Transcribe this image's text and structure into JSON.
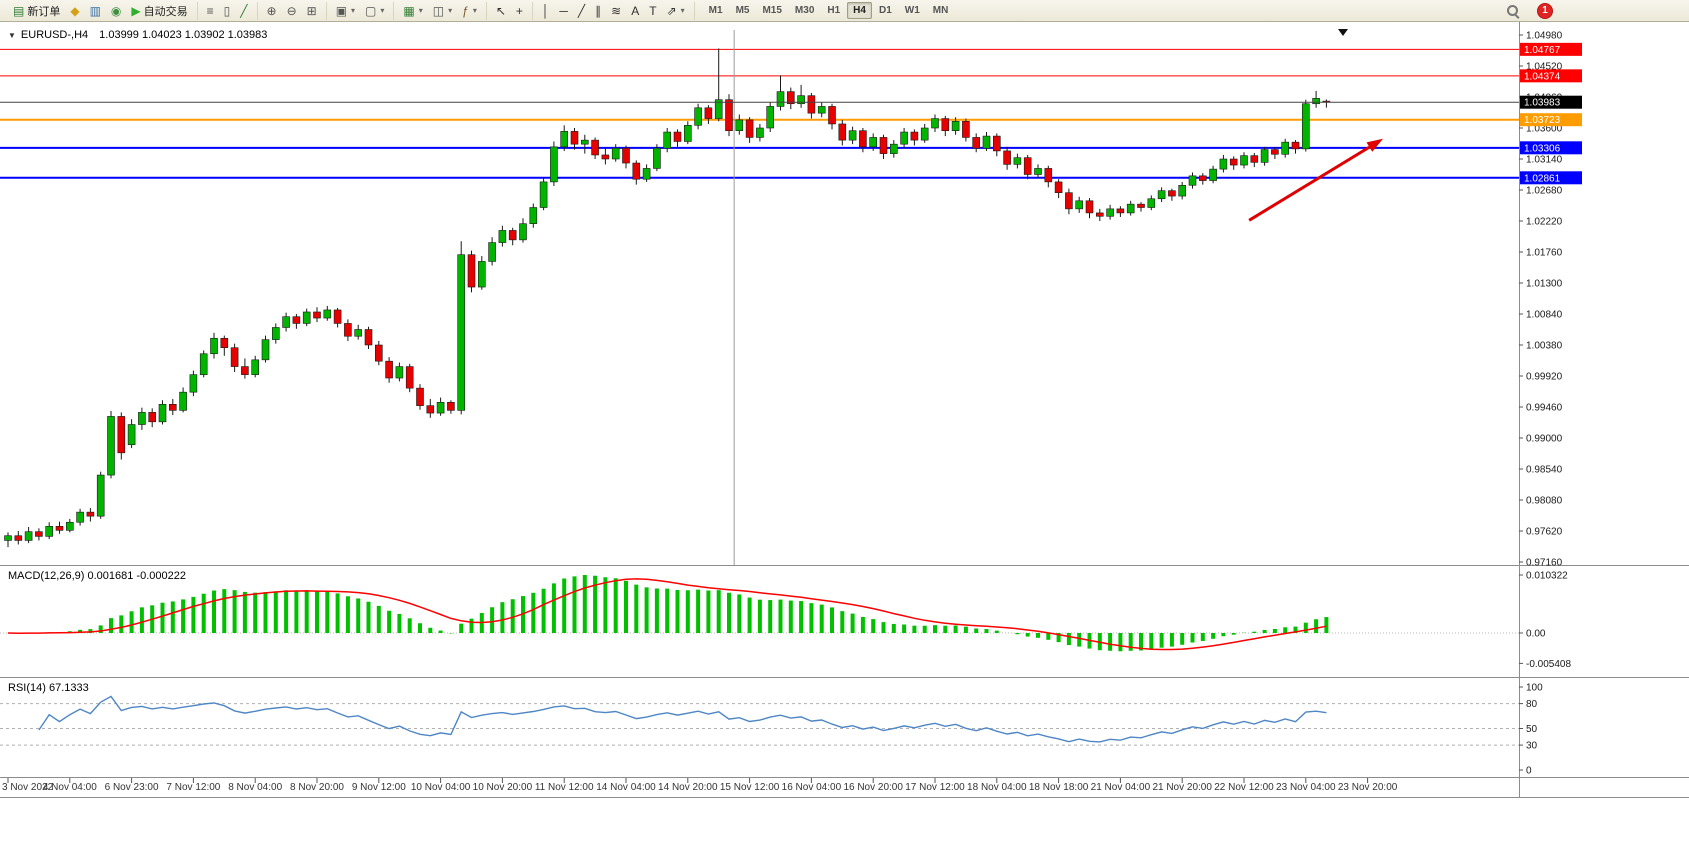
{
  "toolbar": {
    "groups": [
      {
        "items": [
          {
            "name": "new-order",
            "glyph": "▤",
            "color": "#2e7d32",
            "label": "新订单"
          },
          {
            "name": "market-watch",
            "glyph": "◆",
            "color": "#d4a017"
          },
          {
            "name": "data-window",
            "glyph": "▥",
            "color": "#3a6ea5"
          },
          {
            "name": "navigator",
            "glyph": "◉",
            "color": "#3f8f3f"
          },
          {
            "name": "autotrade",
            "glyph": "▶",
            "color": "#2eaf2e",
            "label": "自动交易"
          }
        ]
      },
      {
        "items": [
          {
            "name": "bar-chart",
            "glyph": "≡",
            "color": "#555555"
          },
          {
            "name": "candlestick-chart",
            "glyph": "▯",
            "color": "#555555"
          },
          {
            "name": "line-chart",
            "glyph": "╱",
            "color": "#2e7d32"
          }
        ]
      },
      {
        "items": [
          {
            "name": "zoom-in",
            "glyph": "⊕",
            "color": "#555555"
          },
          {
            "name": "zoom-out",
            "glyph": "⊖",
            "color": "#555555"
          },
          {
            "name": "tile-windows",
            "glyph": "⊞",
            "color": "#555555"
          }
        ]
      },
      {
        "items": [
          {
            "name": "auto-arrange",
            "glyph": "▣",
            "color": "#555555",
            "dropdown": true
          },
          {
            "name": "track-chart",
            "glyph": "▢",
            "color": "#555555",
            "dropdown": true
          }
        ]
      },
      {
        "items": [
          {
            "name": "new-chart",
            "glyph": "▦",
            "color": "#2e7d32",
            "dropdown": true
          },
          {
            "name": "profiles",
            "glyph": "◫",
            "color": "#555555",
            "dropdown": true
          },
          {
            "name": "indicators",
            "glyph": "ƒ",
            "color": "#7a5c2e",
            "dropdown": true
          }
        ]
      },
      {
        "items": [
          {
            "name": "cursor",
            "glyph": "↖",
            "color": "#333333"
          },
          {
            "name": "crosshair",
            "glyph": "+",
            "color": "#333333"
          }
        ]
      },
      {
        "items": [
          {
            "name": "vertical-line",
            "glyph": "│",
            "color": "#333333"
          },
          {
            "name": "horizontal-line",
            "glyph": "─",
            "color": "#333333"
          },
          {
            "name": "trendline",
            "glyph": "╱",
            "color": "#333333"
          },
          {
            "name": "equidistant-channel",
            "glyph": "∥",
            "color": "#333333"
          },
          {
            "name": "fibonacci",
            "glyph": "≋",
            "color": "#333333"
          },
          {
            "name": "text",
            "glyph": "A",
            "color": "#333333"
          },
          {
            "name": "text-label",
            "glyph": "T",
            "color": "#333333"
          },
          {
            "name": "arrows",
            "glyph": "⇗",
            "color": "#333333",
            "dropdown": true
          }
        ]
      }
    ],
    "timeframes": [
      "M1",
      "M5",
      "M15",
      "M30",
      "H1",
      "H4",
      "D1",
      "W1",
      "MN"
    ],
    "active_timeframe": "H4",
    "notification_badge": "1"
  },
  "chart_data": [
    {
      "type": "candlestick",
      "symbol": "EURUSD-",
      "timeframe": "H4",
      "display": "EURUSD-,H4",
      "ohlc_display": "1.03999 1.04023 1.03902 1.03983",
      "current_ohlc": {
        "open": "1.03999",
        "high": "1.04023",
        "low": "1.03902",
        "close": "1.03983"
      },
      "y_axis": {
        "max": 1.0498,
        "min": 0.9716
      },
      "y_ticks": [
        1.0498,
        1.0452,
        1.0406,
        1.036,
        1.0314,
        1.0268,
        1.0222,
        1.0176,
        1.013,
        1.0084,
        1.0038,
        0.9992,
        0.9946,
        0.99,
        0.9854,
        0.9808,
        0.9762,
        0.9716
      ],
      "hlines": [
        {
          "price": 1.04767,
          "label": "1.04767",
          "color": "#ff0000",
          "width": 1
        },
        {
          "price": 1.04374,
          "label": "1.04374",
          "color": "#ff0000",
          "width": 1
        },
        {
          "price": 1.03723,
          "label": "1.03723",
          "color": "#ff9c00",
          "width": 2
        },
        {
          "price": 1.03306,
          "label": "1.03306",
          "color": "#0000ff",
          "width": 2
        },
        {
          "price": 1.02861,
          "label": "1.02861",
          "color": "#0000ff",
          "width": 2
        }
      ],
      "last_price": {
        "value": 1.03983,
        "label": "1.03983",
        "color": "#000000"
      },
      "x_labels": [
        "3 Nov 2022",
        "4 Nov 04:00",
        "6 Nov 23:00",
        "7 Nov 12:00",
        "8 Nov 04:00",
        "8 Nov 20:00",
        "9 Nov 12:00",
        "10 Nov 04:00",
        "10 Nov 20:00",
        "11 Nov 12:00",
        "14 Nov 04:00",
        "14 Nov 20:00",
        "15 Nov 12:00",
        "16 Nov 04:00",
        "16 Nov 20:00",
        "17 Nov 12:00",
        "18 Nov 04:00",
        "18 Nov 18:00",
        "21 Nov 04:00",
        "21 Nov 20:00",
        "22 Nov 12:00",
        "23 Nov 04:00",
        "23 Nov 20:00"
      ],
      "x_label_every": 6,
      "colors": {
        "bull": "#00b400",
        "bear": "#e60000",
        "wick": "#1a1a1a",
        "background": "#ffffff",
        "axis_text": "#1a1a1a"
      },
      "annotations": [
        {
          "type": "arrow",
          "color": "#e00000",
          "from": {
            "index": 120.5,
            "price": 1.0223
          },
          "to": {
            "index": 133.5,
            "price": 1.0344
          }
        },
        {
          "type": "vline",
          "index": 70.5,
          "color": "#9a9a9a"
        }
      ],
      "candles": [
        [
          0.9748,
          0.976,
          0.9738,
          0.9755
        ],
        [
          0.9755,
          0.9762,
          0.9742,
          0.9748
        ],
        [
          0.9748,
          0.9768,
          0.9744,
          0.9761
        ],
        [
          0.9761,
          0.9766,
          0.9748,
          0.9754
        ],
        [
          0.9754,
          0.9775,
          0.975,
          0.9769
        ],
        [
          0.9769,
          0.9776,
          0.9758,
          0.9763
        ],
        [
          0.9763,
          0.978,
          0.976,
          0.9775
        ],
        [
          0.9775,
          0.9795,
          0.977,
          0.979
        ],
        [
          0.979,
          0.9796,
          0.9776,
          0.9784
        ],
        [
          0.9784,
          0.985,
          0.978,
          0.9845
        ],
        [
          0.9845,
          0.994,
          0.984,
          0.9932
        ],
        [
          0.9932,
          0.9938,
          0.9868,
          0.9878
        ],
        [
          0.989,
          0.9928,
          0.9885,
          0.992
        ],
        [
          0.992,
          0.9945,
          0.9912,
          0.9938
        ],
        [
          0.9938,
          0.9944,
          0.9916,
          0.9924
        ],
        [
          0.9924,
          0.9956,
          0.992,
          0.995
        ],
        [
          0.995,
          0.9958,
          0.9934,
          0.9941
        ],
        [
          0.9941,
          0.9975,
          0.9938,
          0.9968
        ],
        [
          0.9968,
          1.0,
          0.9962,
          0.9994
        ],
        [
          0.9994,
          1.003,
          0.999,
          1.0025
        ],
        [
          1.0025,
          1.0056,
          1.0018,
          1.0048
        ],
        [
          1.0048,
          1.0052,
          1.0022,
          1.0034
        ],
        [
          1.0034,
          1.004,
          0.9998,
          1.0006
        ],
        [
          1.0006,
          1.0018,
          0.9988,
          0.9994
        ],
        [
          0.9994,
          1.0022,
          0.999,
          1.0016
        ],
        [
          1.0016,
          1.0052,
          1.0012,
          1.0046
        ],
        [
          1.0046,
          1.007,
          1.004,
          1.0064
        ],
        [
          1.0064,
          1.0086,
          1.0058,
          1.008
        ],
        [
          1.008,
          1.0084,
          1.0062,
          1.007
        ],
        [
          1.007,
          1.0092,
          1.0066,
          1.0087
        ],
        [
          1.0087,
          1.0094,
          1.0072,
          1.0078
        ],
        [
          1.0078,
          1.0096,
          1.0074,
          1.009
        ],
        [
          1.009,
          1.0093,
          1.0064,
          1.007
        ],
        [
          1.007,
          1.0076,
          1.0044,
          1.0051
        ],
        [
          1.0051,
          1.0068,
          1.0046,
          1.0061
        ],
        [
          1.0061,
          1.0065,
          1.0032,
          1.0038
        ],
        [
          1.0038,
          1.0044,
          1.0008,
          1.0014
        ],
        [
          1.0014,
          1.002,
          0.9982,
          0.9989
        ],
        [
          0.9989,
          1.0012,
          0.9984,
          1.0006
        ],
        [
          1.0006,
          1.001,
          0.9968,
          0.9974
        ],
        [
          0.9974,
          0.998,
          0.9942,
          0.9948
        ],
        [
          0.9948,
          0.9958,
          0.993,
          0.9937
        ],
        [
          0.9937,
          0.996,
          0.9933,
          0.9953
        ],
        [
          0.9953,
          0.9956,
          0.9936,
          0.9941
        ],
        [
          0.9941,
          1.0192,
          0.9935,
          1.0172
        ],
        [
          1.0172,
          1.0178,
          1.0116,
          1.0124
        ],
        [
          1.0124,
          1.017,
          1.012,
          1.0162
        ],
        [
          1.0162,
          1.0198,
          1.0156,
          1.019
        ],
        [
          1.019,
          1.0215,
          1.0184,
          1.0208
        ],
        [
          1.0208,
          1.0212,
          1.0186,
          1.0194
        ],
        [
          1.0194,
          1.0226,
          1.019,
          1.0218
        ],
        [
          1.0218,
          1.0248,
          1.0212,
          1.0242
        ],
        [
          1.0242,
          1.0286,
          1.0238,
          1.028
        ],
        [
          1.028,
          1.034,
          1.0274,
          1.0332
        ],
        [
          1.0332,
          1.0364,
          1.0326,
          1.0355
        ],
        [
          1.0355,
          1.036,
          1.0328,
          1.0336
        ],
        [
          1.0336,
          1.035,
          1.0322,
          1.0342
        ],
        [
          1.0342,
          1.0346,
          1.0314,
          1.032
        ],
        [
          1.032,
          1.033,
          1.0306,
          1.0314
        ],
        [
          1.0314,
          1.0336,
          1.031,
          1.033
        ],
        [
          1.033,
          1.0334,
          1.03,
          1.0308
        ],
        [
          1.0308,
          1.0312,
          1.0276,
          1.0284
        ],
        [
          1.0284,
          1.0306,
          1.028,
          1.03
        ],
        [
          1.03,
          1.0336,
          1.0296,
          1.033
        ],
        [
          1.033,
          1.036,
          1.0324,
          1.0354
        ],
        [
          1.0354,
          1.0358,
          1.0332,
          1.034
        ],
        [
          1.034,
          1.037,
          1.0336,
          1.0364
        ],
        [
          1.0364,
          1.0396,
          1.0358,
          1.039
        ],
        [
          1.039,
          1.0394,
          1.0366,
          1.0374
        ],
        [
          1.0374,
          1.0478,
          1.037,
          1.0402
        ],
        [
          1.0402,
          1.041,
          1.0348,
          1.0356
        ],
        [
          1.0356,
          1.038,
          1.035,
          1.0372
        ],
        [
          1.0372,
          1.0376,
          1.0338,
          1.0346
        ],
        [
          1.0346,
          1.0366,
          1.034,
          1.036
        ],
        [
          1.036,
          1.0398,
          1.0354,
          1.0392
        ],
        [
          1.0392,
          1.0438,
          1.0386,
          1.0414
        ],
        [
          1.0414,
          1.042,
          1.0388,
          1.0396
        ],
        [
          1.0396,
          1.0424,
          1.039,
          1.0408
        ],
        [
          1.0408,
          1.0412,
          1.0374,
          1.0382
        ],
        [
          1.0382,
          1.0398,
          1.0376,
          1.0392
        ],
        [
          1.0392,
          1.0396,
          1.0358,
          1.0366
        ],
        [
          1.0366,
          1.0372,
          1.0334,
          1.0342
        ],
        [
          1.0342,
          1.0362,
          1.0336,
          1.0356
        ],
        [
          1.0356,
          1.036,
          1.0324,
          1.0332
        ],
        [
          1.0332,
          1.0352,
          1.0326,
          1.0346
        ],
        [
          1.0346,
          1.035,
          1.0314,
          1.0322
        ],
        [
          1.0322,
          1.0342,
          1.0316,
          1.0336
        ],
        [
          1.0336,
          1.036,
          1.033,
          1.0354
        ],
        [
          1.0354,
          1.0358,
          1.0334,
          1.0342
        ],
        [
          1.0342,
          1.0366,
          1.0338,
          1.036
        ],
        [
          1.036,
          1.038,
          1.0354,
          1.0374
        ],
        [
          1.0374,
          1.0378,
          1.0348,
          1.0356
        ],
        [
          1.0356,
          1.0376,
          1.035,
          1.037
        ],
        [
          1.037,
          1.0374,
          1.034,
          1.0346
        ],
        [
          1.0346,
          1.0352,
          1.0324,
          1.033
        ],
        [
          1.033,
          1.0354,
          1.0326,
          1.0348
        ],
        [
          1.0348,
          1.0352,
          1.0318,
          1.0326
        ],
        [
          1.0326,
          1.0332,
          1.0298,
          1.0306
        ],
        [
          1.0306,
          1.0322,
          1.03,
          1.0316
        ],
        [
          1.0316,
          1.032,
          1.0284,
          1.0291
        ],
        [
          1.0291,
          1.0306,
          1.0286,
          1.03
        ],
        [
          1.03,
          1.0304,
          1.0272,
          1.028
        ],
        [
          1.028,
          1.0284,
          1.0256,
          1.0264
        ],
        [
          1.0264,
          1.027,
          1.0232,
          1.024
        ],
        [
          1.024,
          1.0258,
          1.0234,
          1.0252
        ],
        [
          1.0252,
          1.0256,
          1.0226,
          1.0234
        ],
        [
          1.0234,
          1.024,
          1.0222,
          1.0229
        ],
        [
          1.0229,
          1.0246,
          1.0224,
          1.024
        ],
        [
          1.024,
          1.0244,
          1.0228,
          1.0234
        ],
        [
          1.0234,
          1.0252,
          1.023,
          1.0247
        ],
        [
          1.0247,
          1.025,
          1.0236,
          1.0242
        ],
        [
          1.0242,
          1.026,
          1.0238,
          1.0255
        ],
        [
          1.0255,
          1.0272,
          1.025,
          1.0267
        ],
        [
          1.0267,
          1.027,
          1.0252,
          1.0259
        ],
        [
          1.0259,
          1.028,
          1.0254,
          1.0275
        ],
        [
          1.0275,
          1.0294,
          1.027,
          1.0289
        ],
        [
          1.0289,
          1.0293,
          1.0276,
          1.0282
        ],
        [
          1.0282,
          1.0304,
          1.0278,
          1.0299
        ],
        [
          1.0299,
          1.032,
          1.0294,
          1.0314
        ],
        [
          1.0314,
          1.0318,
          1.0298,
          1.0305
        ],
        [
          1.0305,
          1.0324,
          1.03,
          1.0319
        ],
        [
          1.0319,
          1.0323,
          1.0302,
          1.0309
        ],
        [
          1.0309,
          1.0332,
          1.0304,
          1.0328
        ],
        [
          1.0328,
          1.0332,
          1.0314,
          1.0321
        ],
        [
          1.0321,
          1.0344,
          1.0316,
          1.0339
        ],
        [
          1.0339,
          1.0342,
          1.0322,
          1.0329
        ],
        [
          1.0329,
          1.0402,
          1.0325,
          1.0396
        ],
        [
          1.0396,
          1.0415,
          1.039,
          1.0404
        ],
        [
          1.03999,
          1.04023,
          1.03902,
          1.03983
        ]
      ]
    },
    {
      "type": "macd_histogram",
      "name": "MACD",
      "display": "MACD(12,26,9) 0.001681 -0.000222",
      "params": {
        "fast": 12,
        "slow": 26,
        "signal": 9
      },
      "current_values": {
        "macd": "0.001681",
        "signal": "-0.000222"
      },
      "y_ticks": [
        "0.010322",
        "0.00",
        "-0.005408"
      ],
      "source": "close",
      "colors": {
        "histogram": "#00c000",
        "signal": "#ff0000",
        "zero_line": "#b8b8b8"
      }
    },
    {
      "type": "rsi_line",
      "name": "RSI",
      "display": "RSI(14) 67.1333",
      "period": 14,
      "current_value": "67.1333",
      "levels": [
        80,
        50,
        30
      ],
      "y_ticks": [
        100,
        80,
        50,
        30,
        0
      ],
      "colors": {
        "line": "#4f86c6",
        "level_lines": "#b0b0b0"
      }
    }
  ]
}
